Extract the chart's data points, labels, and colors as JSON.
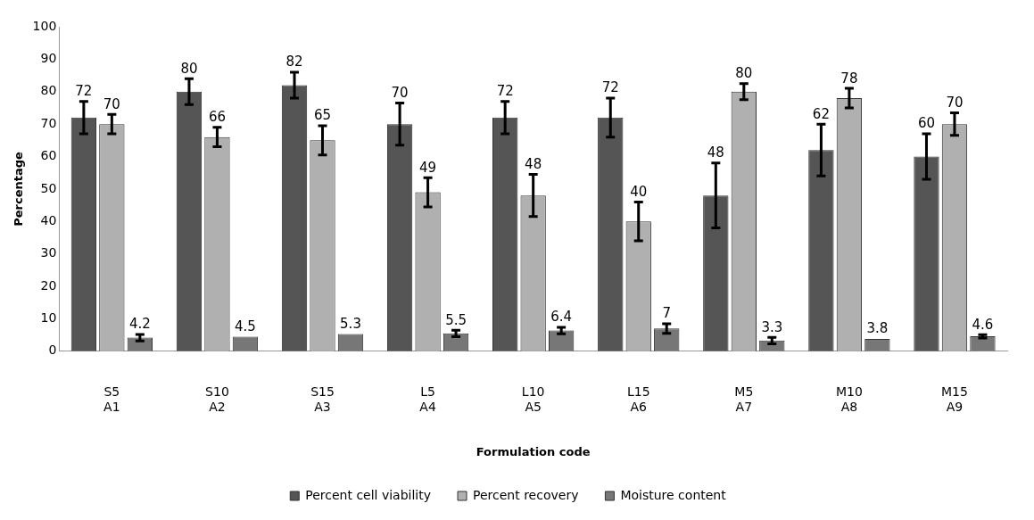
{
  "chart_data": {
    "type": "bar",
    "xlabel": "Formulation code",
    "ylabel": "Percentage",
    "categories": [
      "S5\nA1",
      "S10\nA2",
      "S15\nA3",
      "L5\nA4",
      "L10\nA5",
      "L15\nA6",
      "M5\nA7",
      "M10\nA8",
      "M15\nA9"
    ],
    "series": [
      {
        "name": "Percent cell viability",
        "color": "#555555",
        "values": [
          72,
          80,
          82,
          70,
          72,
          72,
          48,
          62,
          60
        ],
        "errors": [
          5,
          4,
          4,
          6.5,
          5,
          6,
          10,
          8,
          7
        ]
      },
      {
        "name": "Percent recovery",
        "color": "#b0b0b0",
        "values": [
          70,
          66,
          65,
          49,
          48,
          40,
          80,
          78,
          70
        ],
        "errors": [
          3,
          3,
          4.5,
          4.5,
          6.5,
          6,
          2.5,
          3,
          3.5
        ]
      },
      {
        "name": "Moisture content",
        "color": "#777777",
        "values": [
          4.2,
          4.5,
          5.3,
          5.5,
          6.4,
          7,
          3.3,
          3.8,
          4.6
        ],
        "errors": [
          1,
          null,
          null,
          1,
          1,
          1.5,
          1,
          null,
          0.5
        ]
      }
    ],
    "ylim": [
      0,
      100
    ],
    "yticks": [
      0,
      10,
      20,
      30,
      40,
      50,
      60,
      70,
      80,
      90,
      100
    ],
    "data_labels": true,
    "legend": "bottom"
  }
}
